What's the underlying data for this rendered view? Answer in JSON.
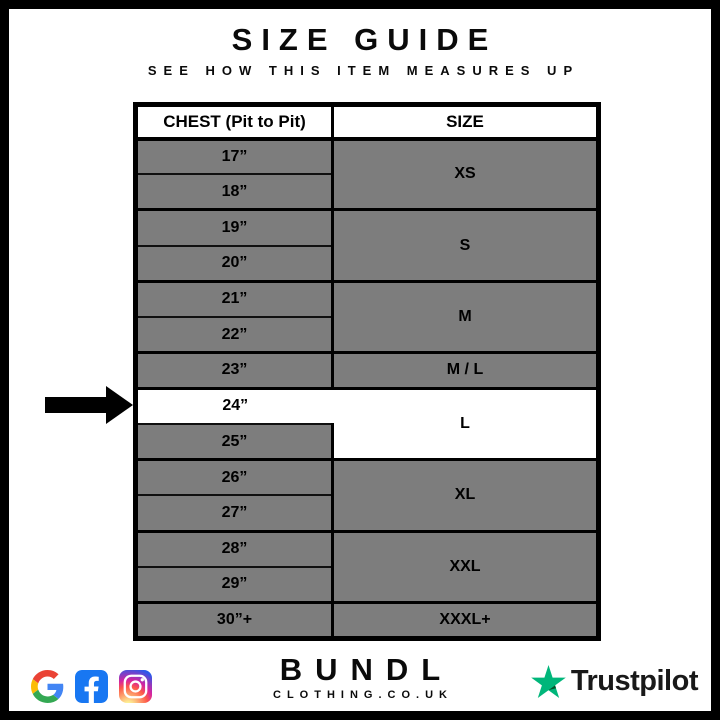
{
  "header": {
    "title": "SIZE GUIDE",
    "subtitle": "SEE HOW THIS ITEM MEASURES UP"
  },
  "table": {
    "columns": {
      "chest": "CHEST (Pit to Pit)",
      "size": "SIZE"
    },
    "rows": [
      {
        "chest": "17”",
        "size": "XS",
        "size_rowspan": 2
      },
      {
        "chest": "18”"
      },
      {
        "chest": "19”",
        "size": "S",
        "size_rowspan": 2
      },
      {
        "chest": "20”"
      },
      {
        "chest": "21”",
        "size": "M",
        "size_rowspan": 2
      },
      {
        "chest": "22”"
      },
      {
        "chest": "23”",
        "size": "M / L",
        "size_rowspan": 1
      },
      {
        "chest": "24”",
        "size": "L",
        "size_rowspan": 2,
        "highlight": true
      },
      {
        "chest": "25”"
      },
      {
        "chest": "26”",
        "size": "XL",
        "size_rowspan": 2
      },
      {
        "chest": "27”"
      },
      {
        "chest": "28”",
        "size": "XXL",
        "size_rowspan": 2
      },
      {
        "chest": "29”"
      },
      {
        "chest": "30”+",
        "size": "XXXL+",
        "size_rowspan": 1
      }
    ],
    "highlighted_chest": "24”",
    "highlighted_size": "L",
    "colors": {
      "row_gray": "#7d7d7d",
      "highlight": "#ffffff",
      "border": "#000000"
    }
  },
  "indicator": {
    "icon": "arrow-right-icon",
    "points_to": "24”",
    "color": "#000000"
  },
  "footer": {
    "brand": {
      "name": "BUNDL",
      "domain": "CLOTHING.CO.UK"
    },
    "social_icons": [
      {
        "name": "google-icon"
      },
      {
        "name": "facebook-icon",
        "color": "#1877F2"
      },
      {
        "name": "instagram-icon"
      }
    ],
    "trustpilot": {
      "label": "Trustpilot",
      "star_color": "#00B67A",
      "star_shadow_color": "#005128",
      "text_color": "#191919"
    }
  }
}
